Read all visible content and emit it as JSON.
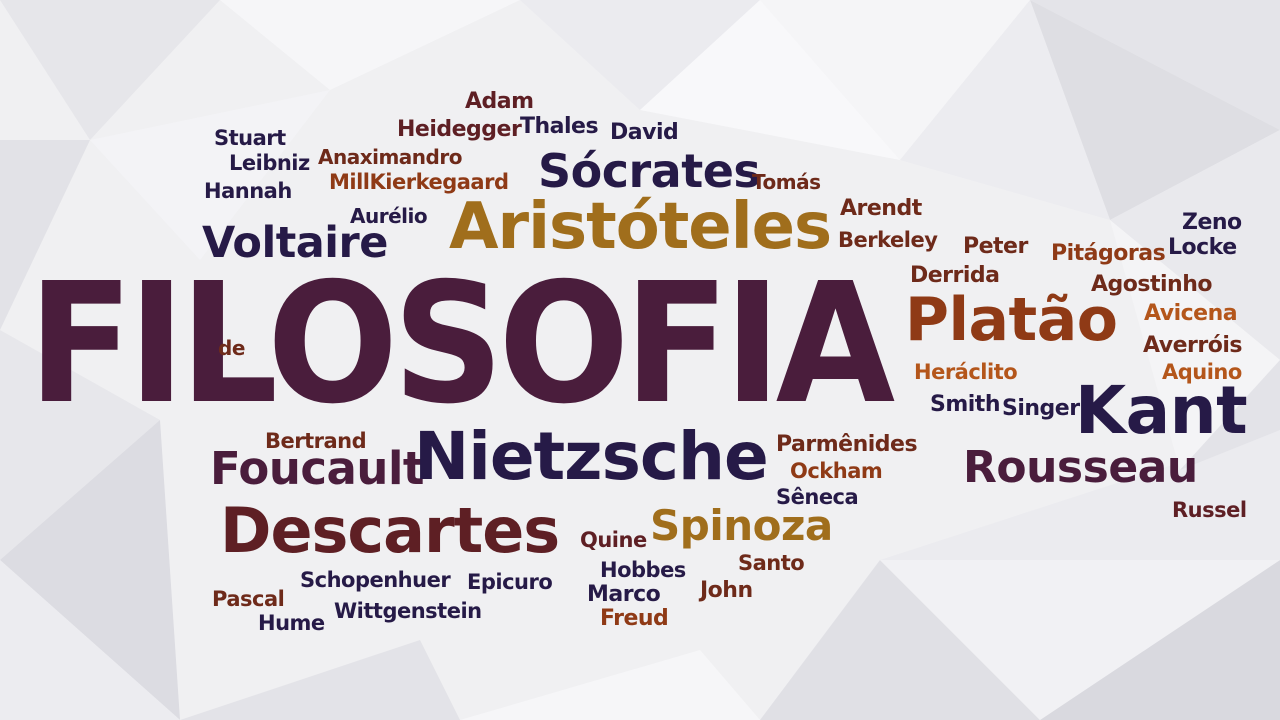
{
  "title": "FILOSOFIA",
  "words": {
    "adam": "Adam",
    "heidegger": "Heidegger",
    "thales": "Thales",
    "david": "David",
    "stuart": "Stuart",
    "leibniz": "Leibniz",
    "anaximandro": "Anaximandro",
    "hannah": "Hannah",
    "millkierkegaard": "MillKierkegaard",
    "socrates": "Sócrates",
    "tomas": "Tomás",
    "aurelio": "Aurélio",
    "aristoteles": "Aristóteles",
    "arendt": "Arendt",
    "voltaire": "Voltaire",
    "berkeley": "Berkeley",
    "zeno": "Zeno",
    "peter": "Peter",
    "pitagoras": "Pitágoras",
    "locke": "Locke",
    "derrida": "Derrida",
    "agostinho": "Agostinho",
    "platao": "Platão",
    "avicena": "Avicena",
    "de": "de",
    "averrois": "Averróis",
    "heraclito": "Heráclito",
    "aquino": "Aquino",
    "smith": "Smith",
    "singer": "Singer",
    "kant": "Kant",
    "bertrand": "Bertrand",
    "parmenides": "Parmênides",
    "foucault": "Foucault",
    "nietzsche": "Nietzsche",
    "ockham": "Ockham",
    "rousseau": "Rousseau",
    "seneca": "Sêneca",
    "russel": "Russel",
    "descartes": "Descartes",
    "spinoza": "Spinoza",
    "quine": "Quine",
    "santo": "Santo",
    "hobbes": "Hobbes",
    "schopenhuer": "Schopenhuer",
    "epicuro": "Epicuro",
    "pascal": "Pascal",
    "marco": "Marco",
    "john": "John",
    "wittgenstein": "Wittgenstein",
    "hume": "Hume",
    "freud": "Freud"
  },
  "colors": {
    "plum": "#4a1d3c",
    "navy": "#261a47",
    "rust": "#8f3a16",
    "gold": "#a06e1c",
    "background": "#f1f1f3"
  }
}
